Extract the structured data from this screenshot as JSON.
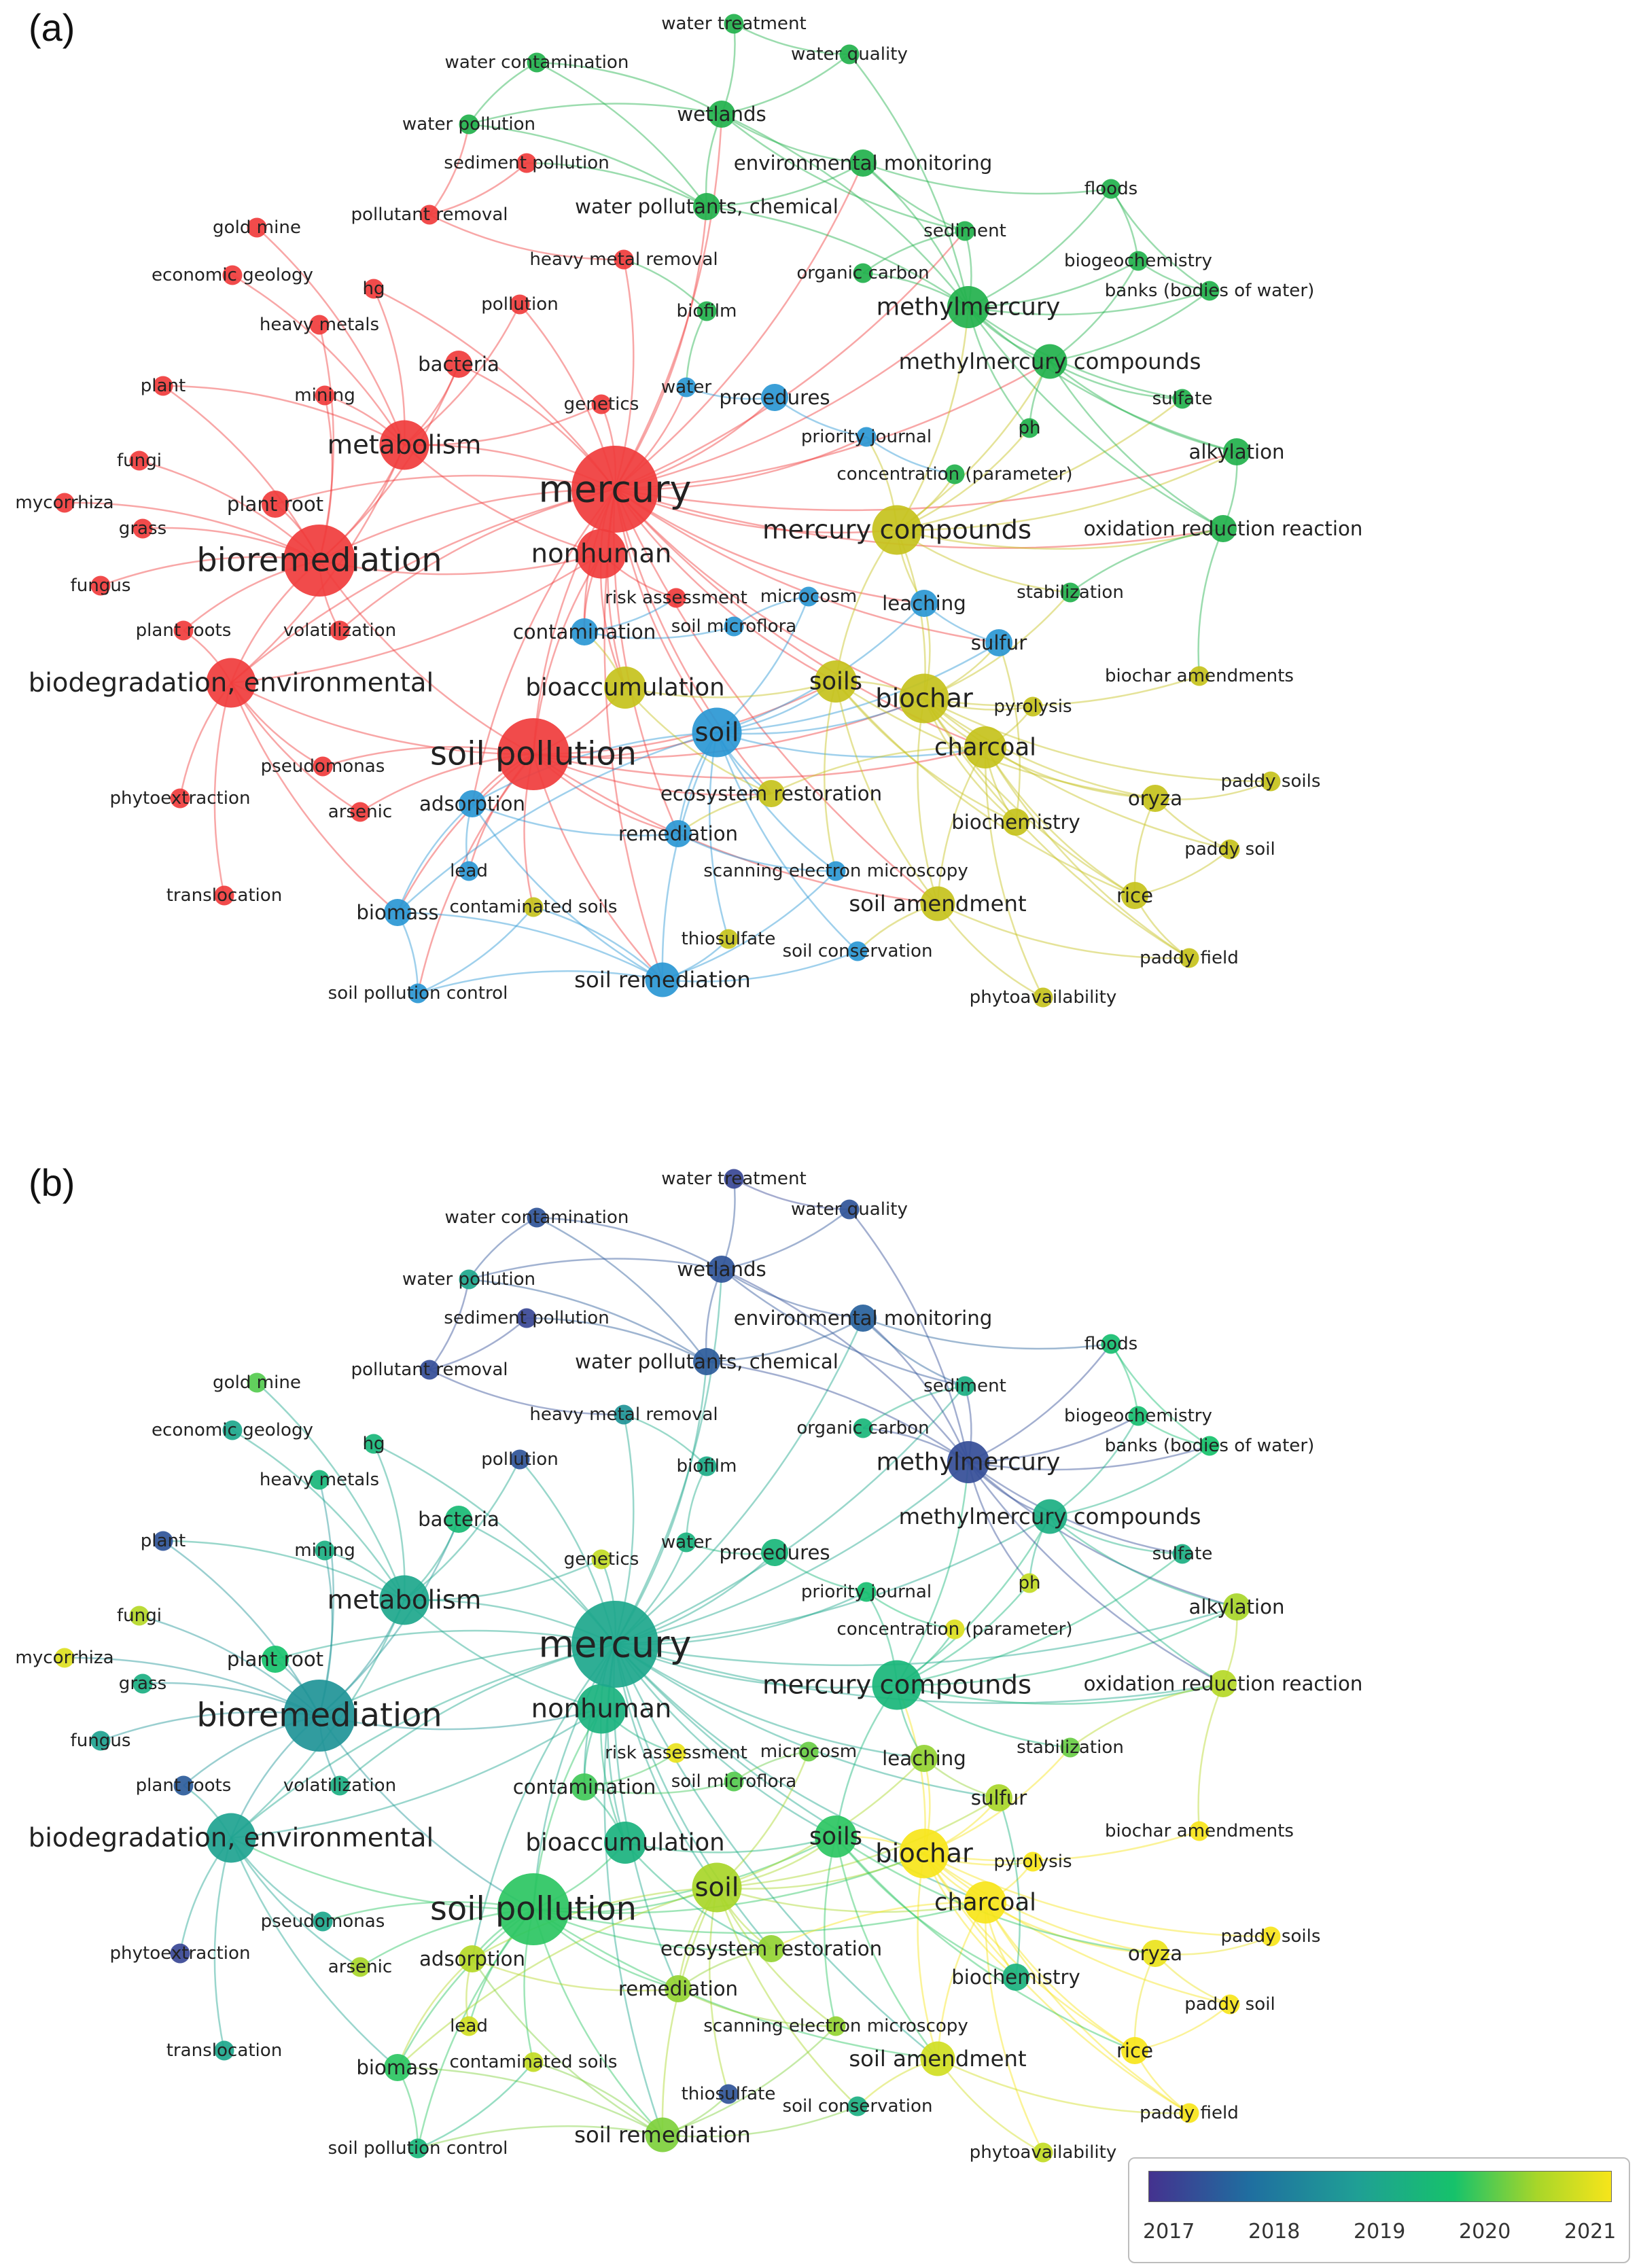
{
  "panels": [
    {
      "label": "(a)",
      "coloring": "cluster"
    },
    {
      "label": "(b)",
      "coloring": "year"
    }
  ],
  "legend": {
    "ticks": [
      "2017",
      "2018",
      "2019",
      "2020",
      "2021"
    ],
    "colors": [
      "#44328f",
      "#1f6fa0",
      "#1f9f95",
      "#16c26b",
      "#a8d629",
      "#f7e51a"
    ]
  },
  "cluster_colors": {
    "red": "#f03c3c",
    "green": "#22b14c",
    "blue": "#2a97d4",
    "yellow": "#c6c21c"
  },
  "nodes": [
    {
      "id": "mercury",
      "label": "mercury",
      "cluster": "red",
      "weight": 10,
      "year": 2019.0
    },
    {
      "id": "soil_pollution",
      "label": "soil pollution",
      "cluster": "red",
      "weight": 8,
      "year": 2019.8
    },
    {
      "id": "bioremediation",
      "label": "bioremediation",
      "cluster": "red",
      "weight": 8,
      "year": 2018.6
    },
    {
      "id": "biodegradation_env",
      "label": "biodegradation, environmental",
      "cluster": "red",
      "weight": 5,
      "year": 2018.9
    },
    {
      "id": "nonhuman",
      "label": "nonhuman",
      "cluster": "red",
      "weight": 5,
      "year": 2019.3
    },
    {
      "id": "metabolism",
      "label": "metabolism",
      "cluster": "red",
      "weight": 5,
      "year": 2019.0
    },
    {
      "id": "plant_root",
      "label": "plant root",
      "cluster": "red",
      "weight": 2,
      "year": 2019.7
    },
    {
      "id": "volatilization",
      "label": "volatilization",
      "cluster": "red",
      "weight": 1,
      "year": 2019.2
    },
    {
      "id": "plant_roots",
      "label": "plant roots",
      "cluster": "red",
      "weight": 1,
      "year": 2017.6
    },
    {
      "id": "fungus",
      "label": "fungus",
      "cluster": "red",
      "weight": 1,
      "year": 2018.9
    },
    {
      "id": "grass",
      "label": "grass",
      "cluster": "red",
      "weight": 1,
      "year": 2019.2
    },
    {
      "id": "mycorrhiza",
      "label": "mycorrhiza",
      "cluster": "red",
      "weight": 1,
      "year": 2020.8
    },
    {
      "id": "fungi",
      "label": "fungi",
      "cluster": "red",
      "weight": 1,
      "year": 2020.5
    },
    {
      "id": "plant",
      "label": "plant",
      "cluster": "red",
      "weight": 1,
      "year": 2017.5
    },
    {
      "id": "mining",
      "label": "mining",
      "cluster": "red",
      "weight": 1,
      "year": 2019.2
    },
    {
      "id": "heavy_metals",
      "label": "heavy metals",
      "cluster": "red",
      "weight": 1,
      "year": 2019.4
    },
    {
      "id": "economic_geology",
      "label": "economic geology",
      "cluster": "red",
      "weight": 1,
      "year": 2019.0
    },
    {
      "id": "gold_mine",
      "label": "gold mine",
      "cluster": "red",
      "weight": 1,
      "year": 2020.0
    },
    {
      "id": "hg",
      "label": "hg",
      "cluster": "red",
      "weight": 1,
      "year": 2019.4
    },
    {
      "id": "bacteria",
      "label": "bacteria",
      "cluster": "red",
      "weight": 2,
      "year": 2019.5
    },
    {
      "id": "pollution",
      "label": "pollution",
      "cluster": "red",
      "weight": 1,
      "year": 2017.5
    },
    {
      "id": "pollutant_removal",
      "label": "pollutant removal",
      "cluster": "red",
      "weight": 1,
      "year": 2017.4
    },
    {
      "id": "sediment_pollution",
      "label": "sediment pollution",
      "cluster": "red",
      "weight": 1,
      "year": 2017.3
    },
    {
      "id": "heavy_metal_removal",
      "label": "heavy metal removal",
      "cluster": "red",
      "weight": 1,
      "year": 2018.6
    },
    {
      "id": "genetics",
      "label": "genetics",
      "cluster": "red",
      "weight": 1,
      "year": 2020.6
    },
    {
      "id": "pseudomonas",
      "label": "pseudomonas",
      "cluster": "red",
      "weight": 1,
      "year": 2019.0
    },
    {
      "id": "arsenic",
      "label": "arsenic",
      "cluster": "red",
      "weight": 1,
      "year": 2020.4
    },
    {
      "id": "phytoextraction",
      "label": "phytoextraction",
      "cluster": "red",
      "weight": 1,
      "year": 2017.3
    },
    {
      "id": "translocation",
      "label": "translocation",
      "cluster": "red",
      "weight": 1,
      "year": 2019.0
    },
    {
      "id": "water_pollution",
      "label": "water pollution",
      "cluster": "green",
      "weight": 1,
      "year": 2019.0
    },
    {
      "id": "water_contamination",
      "label": "water contamination",
      "cluster": "green",
      "weight": 1,
      "year": 2017.5
    },
    {
      "id": "water_treatment",
      "label": "water treatment",
      "cluster": "green",
      "weight": 1,
      "year": 2017.3
    },
    {
      "id": "water_quality",
      "label": "water quality",
      "cluster": "green",
      "weight": 1,
      "year": 2017.5
    },
    {
      "id": "wetlands",
      "label": "wetlands",
      "cluster": "green",
      "weight": 2,
      "year": 2017.5
    },
    {
      "id": "environmental_monitoring",
      "label": "environmental monitoring",
      "cluster": "green",
      "weight": 2,
      "year": 2017.7
    },
    {
      "id": "water_pollutants_chemical",
      "label": "water pollutants, chemical",
      "cluster": "green",
      "weight": 2,
      "year": 2017.6
    },
    {
      "id": "floods",
      "label": "floods",
      "cluster": "green",
      "weight": 1,
      "year": 2019.6
    },
    {
      "id": "sediment",
      "label": "sediment",
      "cluster": "green",
      "weight": 1,
      "year": 2019.2
    },
    {
      "id": "organic_carbon",
      "label": "organic carbon",
      "cluster": "green",
      "weight": 1,
      "year": 2019.4
    },
    {
      "id": "biogeochemistry",
      "label": "biogeochemistry",
      "cluster": "green",
      "weight": 1,
      "year": 2019.6
    },
    {
      "id": "banks",
      "label": "banks (bodies of water)",
      "cluster": "green",
      "weight": 1,
      "year": 2019.7
    },
    {
      "id": "methylmercury",
      "label": "methylmercury",
      "cluster": "green",
      "weight": 4,
      "year": 2017.4
    },
    {
      "id": "methylmercury_compounds",
      "label": "methylmercury compounds",
      "cluster": "green",
      "weight": 3,
      "year": 2019.2
    },
    {
      "id": "sulfate",
      "label": "sulfate",
      "cluster": "green",
      "weight": 1,
      "year": 2019.2
    },
    {
      "id": "ph",
      "label": "ph",
      "cluster": "green",
      "weight": 1,
      "year": 2020.6
    },
    {
      "id": "alkylation",
      "label": "alkylation",
      "cluster": "green",
      "weight": 2,
      "year": 2020.4
    },
    {
      "id": "oxidation_reduction",
      "label": "oxidation reduction reaction",
      "cluster": "green",
      "weight": 2,
      "year": 2020.5
    },
    {
      "id": "stabilization",
      "label": "stabilization",
      "cluster": "green",
      "weight": 1,
      "year": 2020.1
    },
    {
      "id": "biofilm",
      "label": "biofilm",
      "cluster": "green",
      "weight": 1,
      "year": 2019.1
    },
    {
      "id": "water",
      "label": "water",
      "cluster": "blue",
      "weight": 1,
      "year": 2019.3
    },
    {
      "id": "procedures",
      "label": "procedures",
      "cluster": "blue",
      "weight": 2,
      "year": 2019.4
    },
    {
      "id": "priority_journal",
      "label": "priority journal",
      "cluster": "blue",
      "weight": 1,
      "year": 2019.6
    },
    {
      "id": "concentration",
      "label": "concentration (parameter)",
      "cluster": "green",
      "weight": 1,
      "year": 2020.8
    },
    {
      "id": "contamination",
      "label": "contamination",
      "cluster": "blue",
      "weight": 2,
      "year": 2019.9
    },
    {
      "id": "soil_microflora",
      "label": "soil microflora",
      "cluster": "blue",
      "weight": 1,
      "year": 2020.0
    },
    {
      "id": "risk_assessment",
      "label": "risk assessment",
      "cluster": "red",
      "weight": 1,
      "year": 2020.9
    },
    {
      "id": "microcosm",
      "label": "microcosm",
      "cluster": "blue",
      "weight": 1,
      "year": 2020.1
    },
    {
      "id": "leaching",
      "label": "leaching",
      "cluster": "blue",
      "weight": 2,
      "year": 2020.3
    },
    {
      "id": "sulfur",
      "label": "sulfur",
      "cluster": "blue",
      "weight": 2,
      "year": 2020.4
    },
    {
      "id": "soil",
      "label": "soil",
      "cluster": "blue",
      "weight": 5,
      "year": 2020.4
    },
    {
      "id": "adsorption",
      "label": "adsorption",
      "cluster": "blue",
      "weight": 2,
      "year": 2020.5
    },
    {
      "id": "lead",
      "label": "lead",
      "cluster": "blue",
      "weight": 1,
      "year": 2020.7
    },
    {
      "id": "biomass",
      "label": "biomass",
      "cluster": "blue",
      "weight": 2,
      "year": 2019.8
    },
    {
      "id": "remediation",
      "label": "remediation",
      "cluster": "blue",
      "weight": 2,
      "year": 2020.3
    },
    {
      "id": "soil_remediation",
      "label": "soil remediation",
      "cluster": "blue",
      "weight": 3,
      "year": 2020.2
    },
    {
      "id": "soil_pollution_control",
      "label": "soil pollution control",
      "cluster": "blue",
      "weight": 1,
      "year": 2019.4
    },
    {
      "id": "soil_conservation",
      "label": "soil conservation",
      "cluster": "blue",
      "weight": 1,
      "year": 2019.2
    },
    {
      "id": "scanning_em",
      "label": "scanning electron microscopy",
      "cluster": "blue",
      "weight": 1,
      "year": 2020.3
    },
    {
      "id": "thiosulfate",
      "label": "thiosulfate",
      "cluster": "yellow",
      "weight": 1,
      "year": 2017.5
    },
    {
      "id": "bioaccumulation",
      "label": "bioaccumulation",
      "cluster": "yellow",
      "weight": 4,
      "year": 2019.3
    },
    {
      "id": "contaminated_soils",
      "label": "contaminated soils",
      "cluster": "yellow",
      "weight": 1,
      "year": 2020.6
    },
    {
      "id": "mercury_compounds",
      "label": "mercury compounds",
      "cluster": "yellow",
      "weight": 5,
      "year": 2019.4
    },
    {
      "id": "soils",
      "label": "soils",
      "cluster": "yellow",
      "weight": 4,
      "year": 2019.8
    },
    {
      "id": "biochar",
      "label": "biochar",
      "cluster": "yellow",
      "weight": 5,
      "year": 2021.0
    },
    {
      "id": "charcoal",
      "label": "charcoal",
      "cluster": "yellow",
      "weight": 4,
      "year": 2021.0
    },
    {
      "id": "pyrolysis",
      "label": "pyrolysis",
      "cluster": "yellow",
      "weight": 1,
      "year": 2021.0
    },
    {
      "id": "biochar_amendments",
      "label": "biochar amendments",
      "cluster": "yellow",
      "weight": 1,
      "year": 2021.0
    },
    {
      "id": "ecosystem_restoration",
      "label": "ecosystem restoration",
      "cluster": "yellow",
      "weight": 2,
      "year": 2020.3
    },
    {
      "id": "biochemistry",
      "label": "biochemistry",
      "cluster": "yellow",
      "weight": 2,
      "year": 2019.3
    },
    {
      "id": "oryza",
      "label": "oryza",
      "cluster": "yellow",
      "weight": 2,
      "year": 2020.9
    },
    {
      "id": "paddy_soils",
      "label": "paddy soils",
      "cluster": "yellow",
      "weight": 1,
      "year": 2021.0
    },
    {
      "id": "paddy_soil",
      "label": "paddy soil",
      "cluster": "yellow",
      "weight": 1,
      "year": 2021.0
    },
    {
      "id": "soil_amendment",
      "label": "soil amendment",
      "cluster": "yellow",
      "weight": 3,
      "year": 2020.7
    },
    {
      "id": "rice",
      "label": "rice",
      "cluster": "yellow",
      "weight": 2,
      "year": 2021.0
    },
    {
      "id": "paddy_field",
      "label": "paddy field",
      "cluster": "yellow",
      "weight": 1,
      "year": 2021.0
    },
    {
      "id": "phytoavailability",
      "label": "phytoavailability",
      "cluster": "yellow",
      "weight": 1,
      "year": 2020.6
    }
  ]
}
